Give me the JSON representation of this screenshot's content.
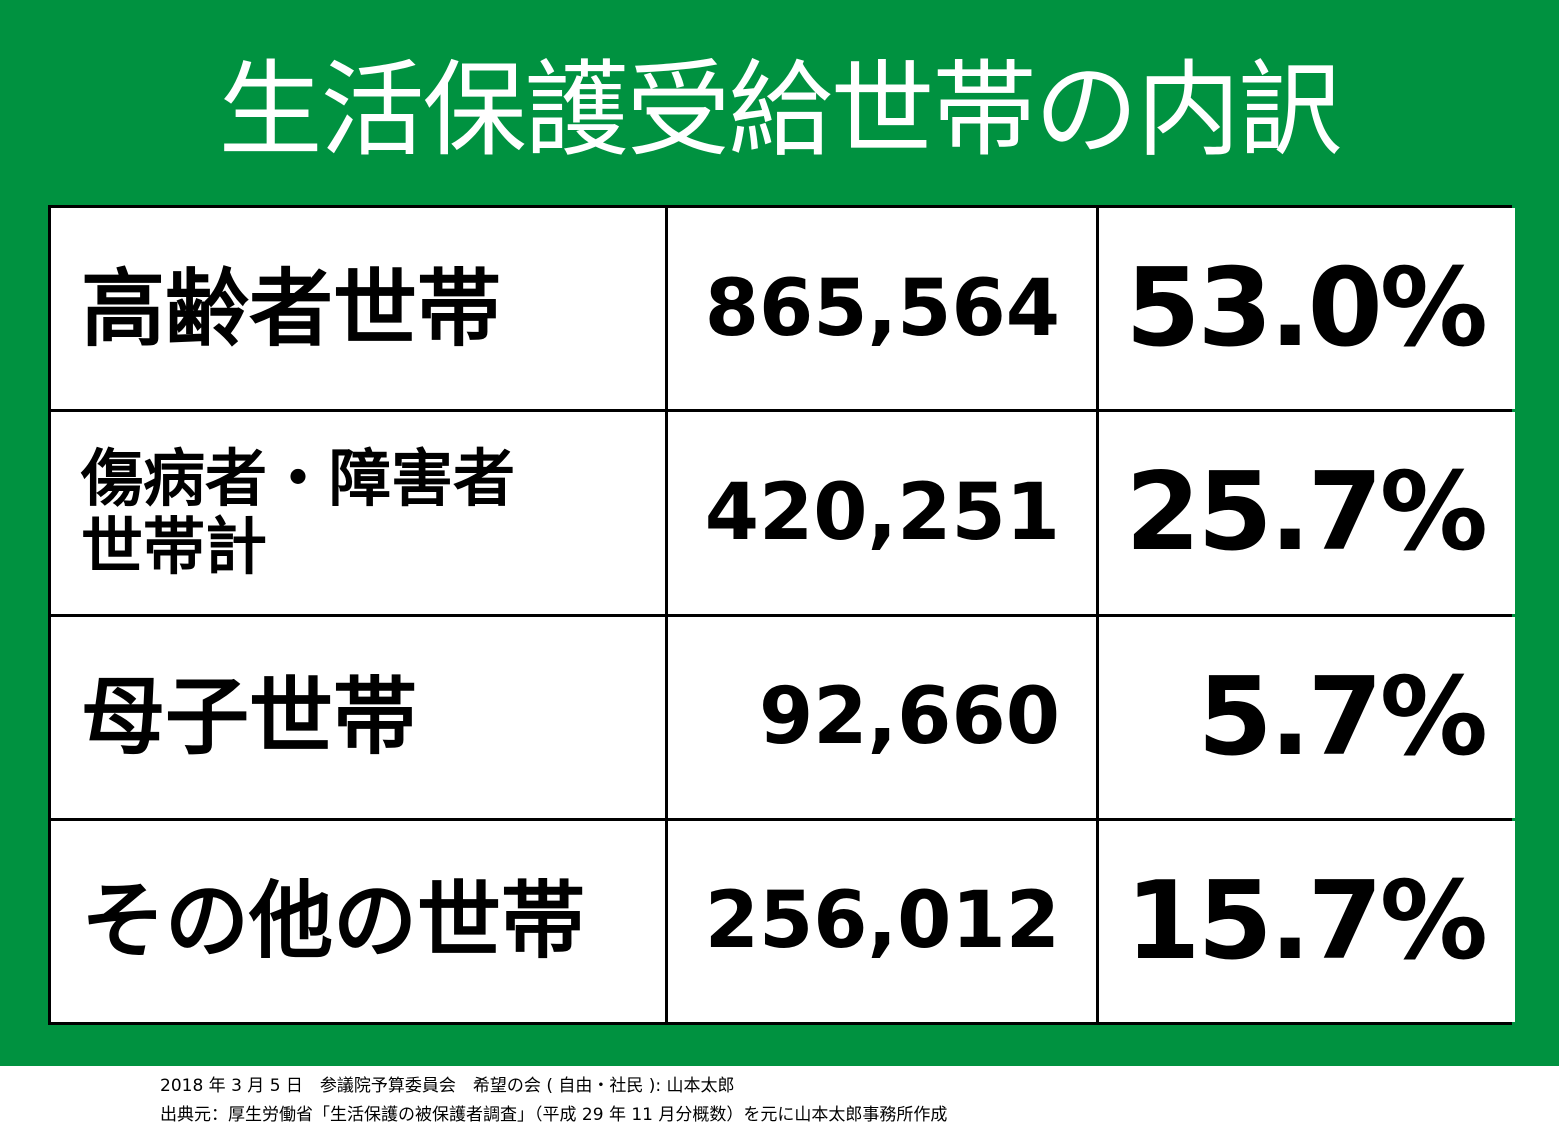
{
  "header": {
    "title": "生活保護受給世帯の内訳"
  },
  "table": {
    "rows": [
      {
        "label": [
          "高齢者世帯"
        ],
        "count": "865,564",
        "share": "53.0%"
      },
      {
        "label": [
          "傷病者・障害者",
          "世帯計"
        ],
        "count": "420,251",
        "share": "25.7%"
      },
      {
        "label": [
          "母子世帯"
        ],
        "count": "92,660",
        "share": "5.7%"
      },
      {
        "label": [
          "その他の世帯"
        ],
        "count": "256,012",
        "share": "15.7%"
      }
    ]
  },
  "footer": {
    "lines": [
      "2018 年 3 月 5 日　参議院予算委員会　希望の会 ( 自由・社民 ): 山本太郎",
      "出典元：厚生労働省「生活保護の被保護者調査」（平成 29 年 11 月分概数）を元に山本太郎事務所作成"
    ]
  }
}
